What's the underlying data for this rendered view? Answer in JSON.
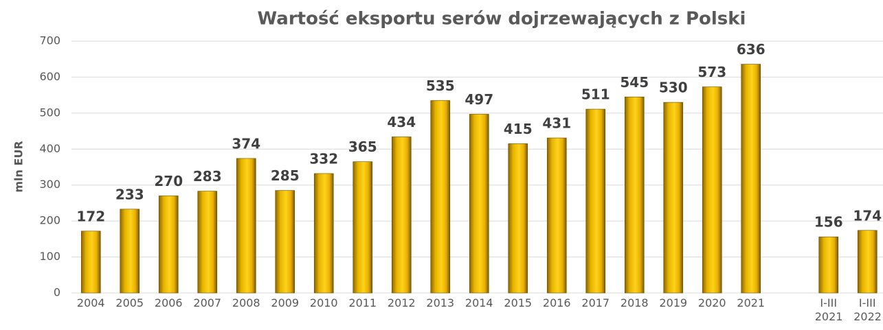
{
  "chart_data": {
    "type": "bar",
    "title": "Wartość eksportu serów dojrzewających z Polski",
    "y_label": "mln EUR",
    "categories": [
      "2004",
      "2005",
      "2006",
      "2007",
      "2008",
      "2009",
      "2010",
      "2011",
      "2012",
      "2013",
      "2014",
      "2015",
      "2016",
      "2017",
      "2018",
      "2019",
      "2020",
      "2021",
      null,
      "I-III 2021",
      "I-III 2022"
    ],
    "values": [
      172,
      233,
      270,
      283,
      374,
      285,
      332,
      365,
      434,
      535,
      497,
      415,
      431,
      511,
      545,
      530,
      573,
      636,
      null,
      156,
      174
    ],
    "color": "#ffcc00",
    "ylim": [
      0,
      700
    ],
    "yticks": [
      0,
      100,
      200,
      300,
      400,
      500,
      600,
      700
    ],
    "grid": true
  }
}
